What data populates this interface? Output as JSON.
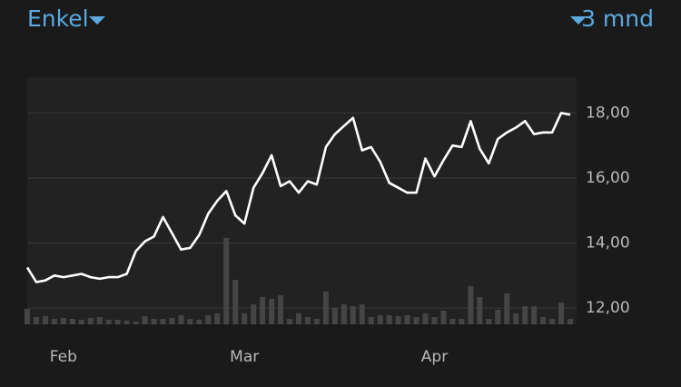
{
  "header": {
    "left": "Enkel",
    "right": "3 mnd"
  },
  "chart_data": {
    "type": "line",
    "color": "#ffffff",
    "volume_color": "#454545",
    "categories": [
      null,
      null,
      null,
      null,
      "Feb",
      null,
      null,
      null,
      null,
      null,
      null,
      null,
      null,
      null,
      null,
      null,
      null,
      null,
      null,
      null,
      null,
      null,
      null,
      null,
      "Mar",
      null,
      null,
      null,
      null,
      null,
      null,
      null,
      null,
      null,
      null,
      null,
      null,
      null,
      null,
      null,
      null,
      null,
      null,
      null,
      null,
      "Apr",
      null,
      null,
      null,
      null,
      null,
      null,
      null,
      null,
      null,
      null,
      null,
      null,
      null,
      null,
      null
    ],
    "values": [
      13.25,
      12.8,
      12.85,
      13.0,
      12.95,
      13.0,
      13.05,
      12.95,
      12.9,
      12.95,
      12.95,
      13.05,
      13.75,
      14.05,
      14.2,
      14.8,
      14.3,
      13.8,
      13.85,
      14.25,
      14.9,
      15.3,
      15.6,
      14.85,
      14.6,
      15.7,
      16.15,
      16.7,
      15.75,
      15.9,
      15.55,
      15.9,
      15.8,
      16.95,
      17.35,
      17.6,
      17.85,
      16.85,
      16.95,
      16.5,
      15.85,
      15.7,
      15.55,
      15.55,
      16.6,
      16.05,
      16.55,
      17.0,
      16.95,
      17.75,
      16.9,
      16.45,
      17.2,
      17.4,
      17.55,
      17.75,
      17.35,
      17.4,
      17.4,
      18.0,
      17.95
    ],
    "volume": [
      17,
      8,
      9,
      6,
      7,
      6,
      5,
      7,
      8,
      5,
      5,
      4,
      3,
      9,
      6,
      6,
      7,
      10,
      6,
      5,
      10,
      12,
      95,
      49,
      12,
      22,
      30,
      28,
      32,
      6,
      12,
      8,
      6,
      36,
      18,
      22,
      20,
      22,
      8,
      10,
      10,
      9,
      10,
      8,
      12,
      8,
      15,
      6,
      6,
      42,
      30,
      6,
      16,
      34,
      12,
      20,
      20,
      8,
      6,
      24,
      6
    ],
    "ylim": [
      11.5,
      19.1
    ],
    "yticks": [
      {
        "value": 12,
        "label": "12,00"
      },
      {
        "value": 14,
        "label": "14,00"
      },
      {
        "value": 16,
        "label": "16,00"
      },
      {
        "value": 18,
        "label": "18,00"
      }
    ],
    "grid": true
  }
}
